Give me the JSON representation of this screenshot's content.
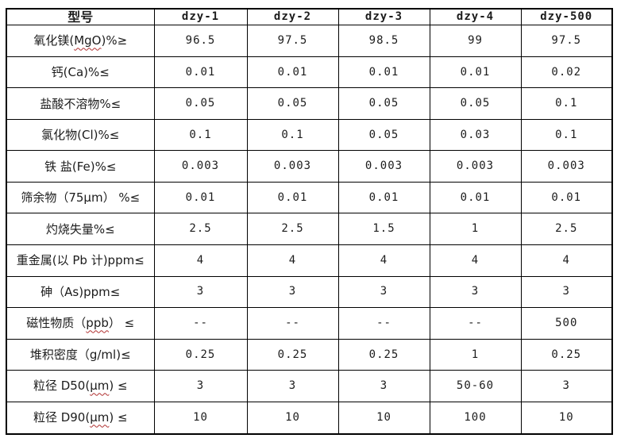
{
  "table": {
    "header": {
      "model_label": "型号",
      "columns": [
        "dzy-1",
        "dzy-2",
        "dzy-3",
        "dzy-4",
        "dzy-500"
      ]
    },
    "rows": [
      {
        "label_parts": [
          {
            "t": "氧化镁(",
            "sq": false
          },
          {
            "t": "MgO",
            "sq": true
          },
          {
            "t": ")%≥",
            "sq": false
          }
        ],
        "values": [
          "96.5",
          "97.5",
          "98.5",
          "99",
          "97.5"
        ]
      },
      {
        "label_parts": [
          {
            "t": "钙(Ca)%≤",
            "sq": false
          }
        ],
        "values": [
          "0.01",
          "0.01",
          "0.01",
          "0.01",
          "0.02"
        ]
      },
      {
        "label_parts": [
          {
            "t": "盐酸不溶物%≤",
            "sq": false
          }
        ],
        "values": [
          "0.05",
          "0.05",
          "0.05",
          "0.05",
          "0.1"
        ]
      },
      {
        "label_parts": [
          {
            "t": "氯化物(Cl)%≤",
            "sq": false
          }
        ],
        "values": [
          "0.1",
          "0.1",
          "0.05",
          "0.03",
          "0.1"
        ]
      },
      {
        "label_parts": [
          {
            "t": "铁 盐(Fe)%≤",
            "sq": false
          }
        ],
        "values": [
          "0.003",
          "0.003",
          "0.003",
          "0.003",
          "0.003"
        ]
      },
      {
        "label_parts": [
          {
            "t": "筛余物（75μm） %≤",
            "sq": false
          }
        ],
        "values": [
          "0.01",
          "0.01",
          "0.01",
          "0.01",
          "0.01"
        ]
      },
      {
        "label_parts": [
          {
            "t": "灼烧失量%≤",
            "sq": false
          }
        ],
        "values": [
          "2.5",
          "2.5",
          "1.5",
          "1",
          "2.5"
        ]
      },
      {
        "label_parts": [
          {
            "t": "重金属(以 Pb 计)ppm≤",
            "sq": false
          }
        ],
        "values": [
          "4",
          "4",
          "4",
          "4",
          "4"
        ]
      },
      {
        "label_parts": [
          {
            "t": "砷（As)ppm≤",
            "sq": false
          }
        ],
        "values": [
          "3",
          "3",
          "3",
          "3",
          "3"
        ]
      },
      {
        "label_parts": [
          {
            "t": "磁性物质（",
            "sq": false
          },
          {
            "t": "ppb",
            "sq": true
          },
          {
            "t": "） ≤",
            "sq": false
          }
        ],
        "values": [
          "--",
          "--",
          "--",
          "--",
          "500"
        ]
      },
      {
        "label_parts": [
          {
            "t": "堆积密度（g/ml)≤",
            "sq": false
          }
        ],
        "values": [
          "0.25",
          "0.25",
          "0.25",
          "1",
          "0.25"
        ]
      },
      {
        "label_parts": [
          {
            "t": "粒径 D50(",
            "sq": false
          },
          {
            "t": "μm",
            "sq": true
          },
          {
            "t": ") ≤",
            "sq": false
          }
        ],
        "values": [
          "3",
          "3",
          "3",
          "50-60",
          "3"
        ]
      },
      {
        "label_parts": [
          {
            "t": "粒径 D90(",
            "sq": false
          },
          {
            "t": "μm",
            "sq": true
          },
          {
            "t": ") ≤",
            "sq": false
          }
        ],
        "values": [
          "10",
          "10",
          "10",
          "100",
          "10"
        ]
      }
    ]
  },
  "colors": {
    "border": "#000000",
    "text": "#1c1c1c",
    "squiggle": "#b03030",
    "background": "#ffffff"
  }
}
